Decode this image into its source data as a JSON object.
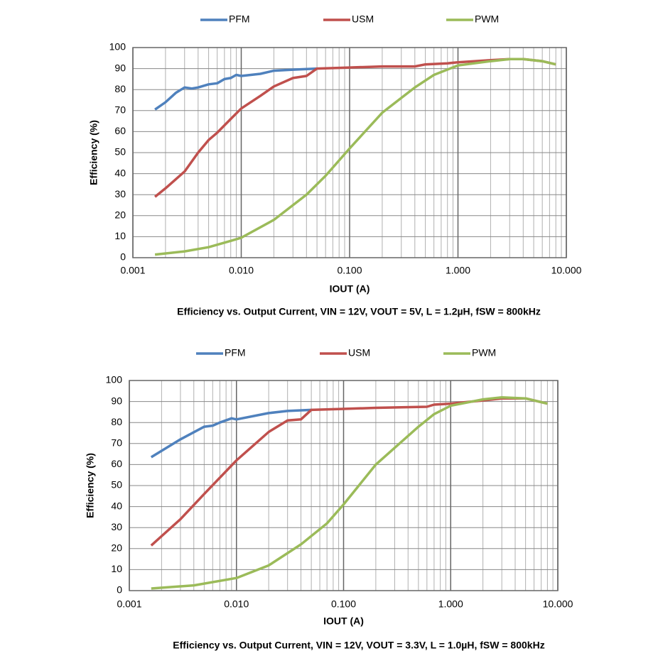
{
  "chart_data": [
    {
      "type": "line",
      "title": "Efficiency vs. Output Current, VIN = 12V, VOUT = 5V, L = 1.2µH, fSW = 800kHz",
      "x_label": "IOUT (A)",
      "y_label": "Efficiency (%)",
      "x_log": true,
      "grid": true,
      "minor_grid": true,
      "legend": "top",
      "xlim": [
        0.001,
        10
      ],
      "xticks": [
        0.001,
        {
          "value": 0.01,
          "label": "0.010"
        },
        {
          "value": 0.1,
          "label": "0.100"
        },
        {
          "value": 1,
          "label": "1.000"
        },
        {
          "value": 10,
          "label": "10.000"
        }
      ],
      "ylim": [
        0,
        100
      ],
      "yticks": [
        0,
        10,
        20,
        30,
        40,
        50,
        60,
        70,
        80,
        90,
        100
      ],
      "series": [
        {
          "name": "PFM",
          "color": "#4f81bd",
          "x": [
            0.0016,
            0.002,
            0.0025,
            0.003,
            0.0035,
            0.004,
            0.005,
            0.006,
            0.007,
            0.008,
            0.009,
            0.01,
            0.015,
            0.02,
            0.03,
            0.05
          ],
          "values": [
            70.5,
            74,
            78.5,
            81,
            80.5,
            81,
            82.5,
            83,
            85,
            85.5,
            87,
            86.5,
            87.5,
            89,
            89.5,
            90
          ]
        },
        {
          "name": "USM",
          "color": "#c0504d",
          "x": [
            0.0016,
            0.002,
            0.003,
            0.004,
            0.005,
            0.006,
            0.008,
            0.01,
            0.015,
            0.02,
            0.03,
            0.04,
            0.05,
            0.1,
            0.2,
            0.4,
            0.5,
            0.8,
            1,
            2,
            3,
            4,
            6,
            8
          ],
          "values": [
            29,
            33,
            41,
            50,
            56,
            59.5,
            66,
            71,
            77,
            81.5,
            85.5,
            86.5,
            90,
            90.5,
            91,
            91,
            92,
            92.5,
            93,
            94,
            94.5,
            94.5,
            93.5,
            92
          ]
        },
        {
          "name": "PWM",
          "color": "#9bbb59",
          "x": [
            0.0016,
            0.003,
            0.005,
            0.008,
            0.01,
            0.02,
            0.04,
            0.06,
            0.1,
            0.2,
            0.4,
            0.6,
            1,
            2,
            3,
            4,
            6,
            8
          ],
          "values": [
            1.5,
            3,
            5,
            8,
            9.5,
            18,
            30,
            39,
            52,
            69,
            81,
            87,
            91.5,
            93.5,
            94.5,
            94.5,
            93.5,
            92
          ]
        }
      ]
    },
    {
      "type": "line",
      "title": "Efficiency vs. Output Current, VIN = 12V, VOUT = 3.3V, L = 1.0µH, fSW = 800kHz",
      "x_label": "IOUT (A)",
      "y_label": "Efficiency (%)",
      "x_log": true,
      "grid": true,
      "minor_grid": true,
      "legend": "top",
      "xlim": [
        0.001,
        10
      ],
      "xticks": [
        0.001,
        {
          "value": 0.01,
          "label": "0.010"
        },
        {
          "value": 0.1,
          "label": "0.100"
        },
        {
          "value": 1,
          "label": "1.000"
        },
        {
          "value": 10,
          "label": "10.000"
        }
      ],
      "ylim": [
        0,
        100
      ],
      "yticks": [
        0,
        10,
        20,
        30,
        40,
        50,
        60,
        70,
        80,
        90,
        100
      ],
      "series": [
        {
          "name": "PFM",
          "color": "#4f81bd",
          "x": [
            0.0016,
            0.003,
            0.005,
            0.006,
            0.007,
            0.009,
            0.01,
            0.02,
            0.03,
            0.05
          ],
          "values": [
            63.5,
            72,
            78,
            78.5,
            80,
            82,
            81.5,
            84.5,
            85.5,
            86
          ]
        },
        {
          "name": "USM",
          "color": "#c0504d",
          "x": [
            0.0016,
            0.003,
            0.005,
            0.01,
            0.02,
            0.03,
            0.04,
            0.05,
            0.1,
            0.2,
            0.6,
            0.7,
            1,
            2,
            3,
            5,
            8
          ],
          "values": [
            21.5,
            34,
            46,
            62,
            75.5,
            81,
            81.5,
            86,
            86.5,
            87,
            87.5,
            88.5,
            89,
            90.5,
            91.5,
            91.5,
            89
          ]
        },
        {
          "name": "PWM",
          "color": "#9bbb59",
          "x": [
            0.0016,
            0.004,
            0.01,
            0.02,
            0.04,
            0.07,
            0.1,
            0.2,
            0.5,
            0.7,
            1,
            2,
            3,
            5,
            8
          ],
          "values": [
            1,
            2.5,
            6,
            12,
            22,
            32,
            41,
            60,
            78,
            84,
            88,
            91,
            92,
            91.5,
            89
          ]
        }
      ]
    }
  ]
}
